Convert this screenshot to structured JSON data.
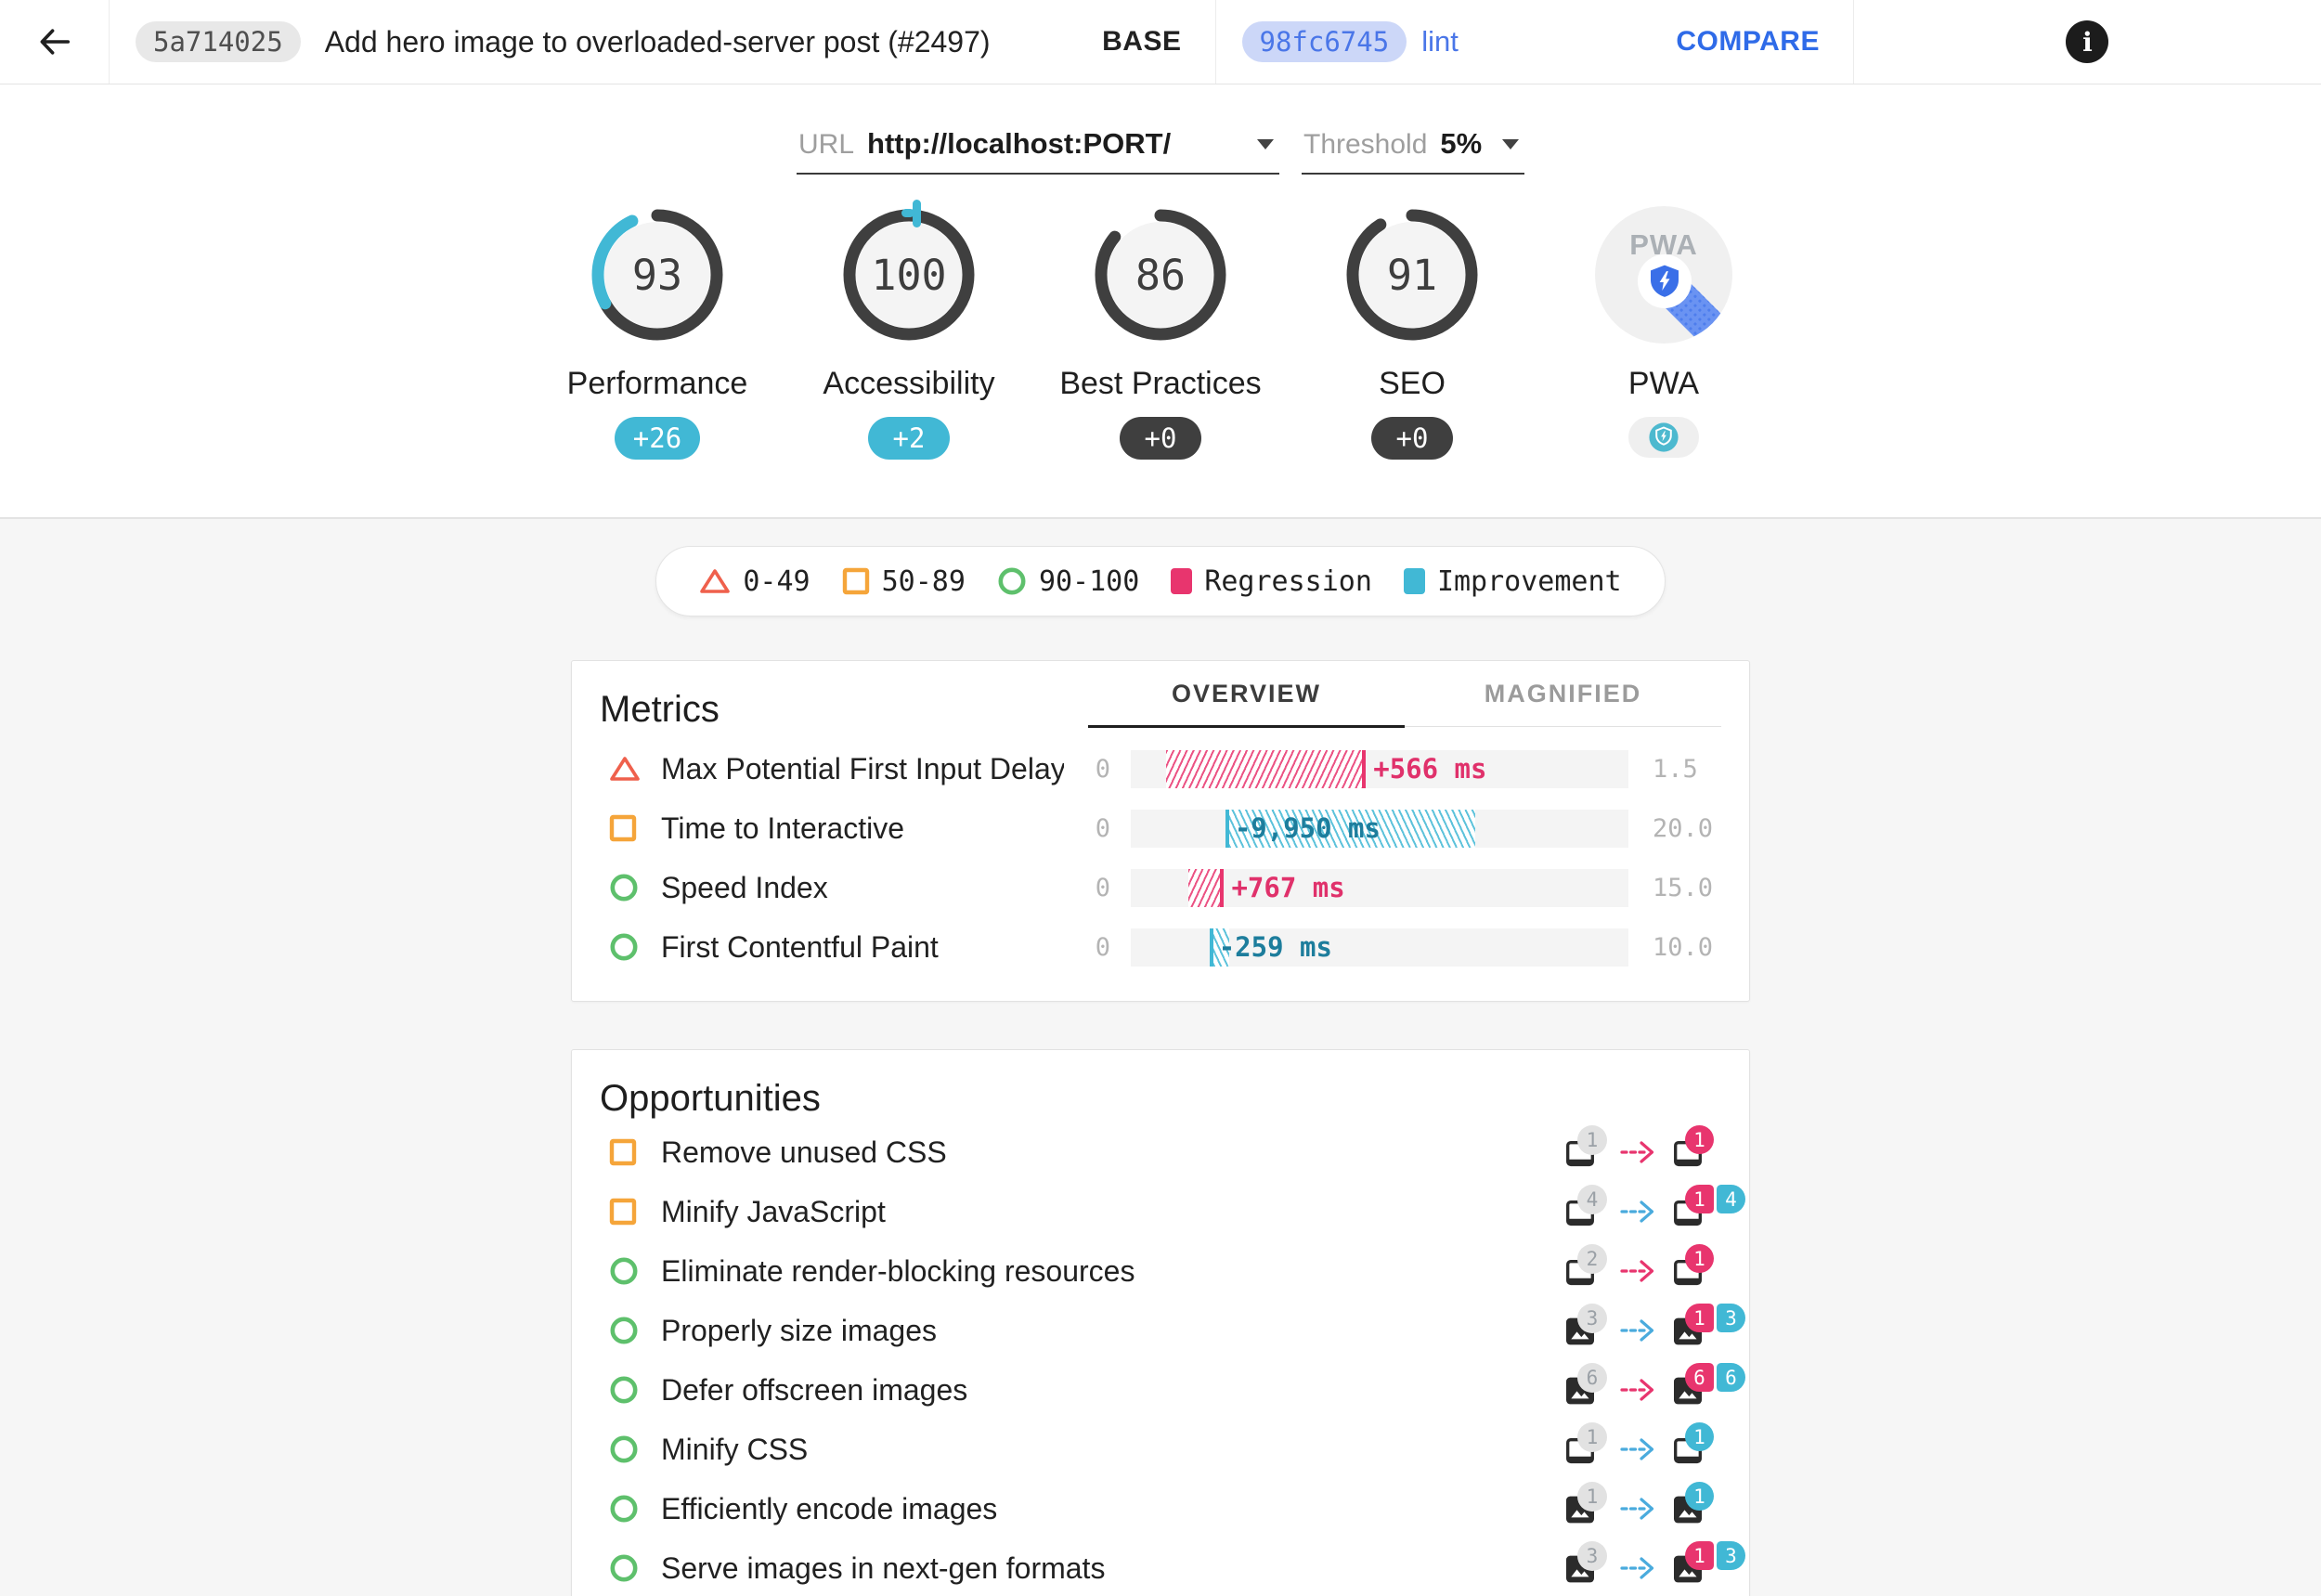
{
  "colors": {
    "regression": "#e8356e",
    "improvement": "#41b8d5",
    "improvement_text": "#1d7d9c",
    "fail": "#ef604c",
    "average": "#f5a53a",
    "pass": "#5ec06c",
    "neutral_badge": "#3f3f3f",
    "accent_blue": "#2f6be8",
    "chip_blue_bg": "#ccd7f8",
    "chip_blue_text": "#4a76e8",
    "gauge_ring": "#3f3f3f"
  },
  "header": {
    "base": {
      "hash": "5a714025",
      "title": "Add hero image to overloaded-server post (#2497)",
      "label": "BASE"
    },
    "compare": {
      "hash": "98fc6745",
      "branch": "lint",
      "button_label": "COMPARE"
    },
    "info_glyph": "i"
  },
  "controls": {
    "url_label": "URL",
    "url_value": "http://localhost:PORT/",
    "threshold_label": "Threshold",
    "threshold_value": "5%"
  },
  "scores": [
    {
      "id": "performance",
      "label": "Performance",
      "value": "93",
      "score": 93,
      "delta": 26,
      "delta_label": "+26",
      "delta_type": "improvement"
    },
    {
      "id": "accessibility",
      "label": "Accessibility",
      "value": "100",
      "score": 100,
      "delta": 2,
      "delta_label": "+2",
      "delta_type": "improvement"
    },
    {
      "id": "best-practices",
      "label": "Best Practices",
      "value": "86",
      "score": 86,
      "delta": 0,
      "delta_label": "+0",
      "delta_type": "neutral"
    },
    {
      "id": "seo",
      "label": "SEO",
      "value": "91",
      "score": 91,
      "delta": 0,
      "delta_label": "+0",
      "delta_type": "neutral"
    },
    {
      "id": "pwa",
      "label": "PWA",
      "type": "pwa",
      "logo_text": "PWA"
    }
  ],
  "legend": {
    "items": [
      {
        "icon": "triangle",
        "label": "0-49"
      },
      {
        "icon": "square",
        "label": "50-89"
      },
      {
        "icon": "circle",
        "label": "90-100"
      },
      {
        "icon": "swatch-regression",
        "label": "Regression"
      },
      {
        "icon": "swatch-improvement",
        "label": "Improvement"
      }
    ]
  },
  "metrics": {
    "title": "Metrics",
    "tabs": [
      {
        "label": "OVERVIEW",
        "active": true
      },
      {
        "label": "MAGNIFIED",
        "active": false
      }
    ],
    "rows": [
      {
        "icon": "triangle",
        "label": "Max Potential First Input Delay",
        "min": "0",
        "max": "1.5",
        "delta": "+566 ms",
        "direction": "regression",
        "bar_start_pct": 7,
        "bar_width_pct": 39.5
      },
      {
        "icon": "square",
        "label": "Time to Interactive",
        "min": "0",
        "max": "20.0",
        "delta": "-9,950 ms",
        "direction": "improvement",
        "bar_start_pct": 19,
        "bar_width_pct": 49.5
      },
      {
        "icon": "circle",
        "label": "Speed Index",
        "min": "0",
        "max": "15.0",
        "delta": "+767 ms",
        "direction": "regression",
        "bar_start_pct": 11.5,
        "bar_width_pct": 6.5
      },
      {
        "icon": "circle",
        "label": "First Contentful Paint",
        "min": "0",
        "max": "10.0",
        "delta": "-259 ms",
        "direction": "improvement",
        "bar_start_pct": 15.8,
        "bar_width_pct": 3.2
      }
    ]
  },
  "opportunities": {
    "title": "Opportunities",
    "rows": [
      {
        "icon": "square",
        "label": "Remove unused CSS",
        "item_icon": "doc",
        "base_count": "1",
        "arrow": "regression",
        "badges": [
          {
            "value": "1",
            "type": "regression"
          }
        ]
      },
      {
        "icon": "square",
        "label": "Minify JavaScript",
        "item_icon": "doc",
        "base_count": "4",
        "arrow": "improvement",
        "badges": [
          {
            "value": "1",
            "type": "regression"
          },
          {
            "value": "4",
            "type": "improvement"
          }
        ]
      },
      {
        "icon": "circle",
        "label": "Eliminate render-blocking resources",
        "item_icon": "doc",
        "base_count": "2",
        "arrow": "regression",
        "badges": [
          {
            "value": "1",
            "type": "regression"
          }
        ]
      },
      {
        "icon": "circle",
        "label": "Properly size images",
        "item_icon": "image",
        "base_count": "3",
        "arrow": "improvement",
        "badges": [
          {
            "value": "1",
            "type": "regression"
          },
          {
            "value": "3",
            "type": "improvement"
          }
        ]
      },
      {
        "icon": "circle",
        "label": "Defer offscreen images",
        "item_icon": "image",
        "base_count": "6",
        "arrow": "regression",
        "badges": [
          {
            "value": "6",
            "type": "regression"
          },
          {
            "value": "6",
            "type": "improvement"
          }
        ]
      },
      {
        "icon": "circle",
        "label": "Minify CSS",
        "item_icon": "doc",
        "base_count": "1",
        "arrow": "improvement",
        "badges": [
          {
            "value": "1",
            "type": "improvement"
          }
        ]
      },
      {
        "icon": "circle",
        "label": "Efficiently encode images",
        "item_icon": "image",
        "base_count": "1",
        "arrow": "improvement",
        "badges": [
          {
            "value": "1",
            "type": "improvement"
          }
        ]
      },
      {
        "icon": "circle",
        "label": "Serve images in next-gen formats",
        "item_icon": "image",
        "base_count": "3",
        "arrow": "improvement",
        "badges": [
          {
            "value": "1",
            "type": "regression"
          },
          {
            "value": "3",
            "type": "improvement"
          }
        ]
      }
    ]
  }
}
